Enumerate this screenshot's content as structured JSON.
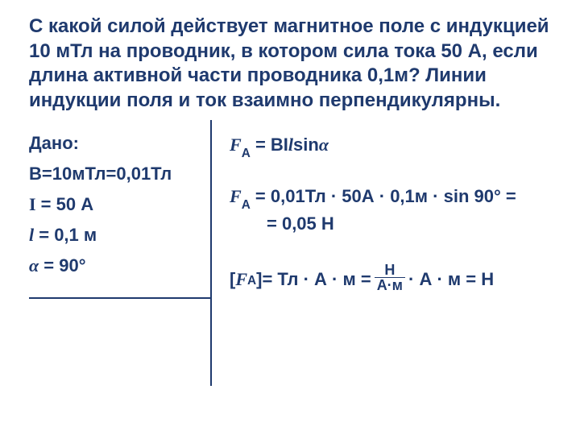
{
  "colors": {
    "text": "#1f3a6e",
    "background": "#ffffff",
    "rule": "#1f3a6e"
  },
  "typography": {
    "base_fontsize_pt": 22,
    "problem_fontsize_pt": 24,
    "weight": "bold"
  },
  "problem": "С какой силой действует магнитное поле с индукцией 10 мТл на проводник, в котором сила тока 50 А, если длина активной части проводника 0,1м? Линии индукции поля и ток взаимно перпендикулярны.",
  "given": {
    "heading": "Дано:",
    "B": "В=10мТл=0,01Тл",
    "I": "I = 50 А",
    "l": "l = 0,1 м",
    "alpha": "α = 90°"
  },
  "solution": {
    "formula_lhs": "F",
    "formula_sub": "A",
    "formula_rhs": " = BIlsinα",
    "calc_part1": " = 0,01Тл · 50А · 0,1м · sin 90° =",
    "calc_part2": "= 0,05 Н",
    "units": {
      "open": "[",
      "symbol": "F",
      "sub": "A",
      "close": "]= Тл · А · м = ",
      "frac_num": "Н",
      "frac_den": "А·м",
      "tail": "· А · м = Н"
    }
  }
}
